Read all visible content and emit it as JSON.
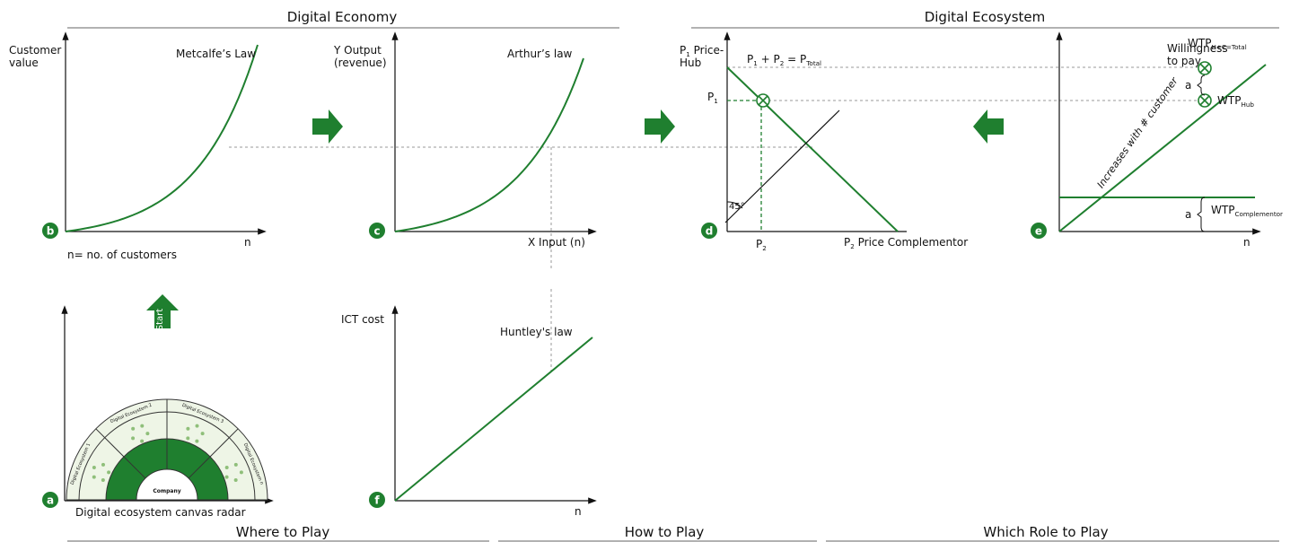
{
  "header": {
    "left": "Digital Economy",
    "right": "Digital Ecosystem"
  },
  "footer": {
    "where": "Where to Play",
    "how": "How to Play",
    "role": "Which Role to Play"
  },
  "panels": {
    "b": {
      "badge": "b",
      "y_label": [
        "Customer",
        "value"
      ],
      "curve_label": "Metcalfe’s Law",
      "x_label": "n",
      "note": "n= no. of customers"
    },
    "c": {
      "badge": "c",
      "y_label": [
        "Y Output",
        "(revenue)"
      ],
      "curve_label": "Arthur’s law",
      "x_label": "X Input (n)"
    },
    "d": {
      "badge": "d",
      "y_label": [
        [
          [
            "P",
            "1"
          ],
          [
            " Price-"
          ]
        ],
        [
          [
            "Hub"
          ]
        ]
      ],
      "equation": [
        [
          "P",
          "1"
        ],
        [
          " + P",
          "2"
        ],
        [
          " = P",
          "Total"
        ]
      ],
      "p1": [
        [
          "P",
          "1"
        ]
      ],
      "p2": [
        [
          "P",
          "2"
        ]
      ],
      "x_label": [
        [
          "P",
          "2"
        ],
        [
          " Price Complementor"
        ]
      ],
      "angle": "45°"
    },
    "e": {
      "badge": "e",
      "y_label": [
        "Willingness",
        "to pay"
      ],
      "wtp_total": [
        [
          "WTP",
          "H+C=Total"
        ]
      ],
      "gap_top": "a",
      "wtp_hub": [
        [
          "WTP",
          "Hub"
        ]
      ],
      "line_label": "Increases with # customer",
      "gap_bottom": "a",
      "wtp_comp": [
        [
          "WTP",
          "Complementor"
        ]
      ],
      "x_label": "n"
    },
    "a": {
      "badge": "a",
      "start": "Start",
      "sectors": [
        "Digital Ecosystem 1",
        "Digital Ecosystem 2",
        "Digital Ecosystem 3",
        "Digital Ecosystem n"
      ],
      "center": "Company",
      "caption": "Digital ecosystem canvas radar"
    },
    "f": {
      "badge": "f",
      "y_label": [
        "ICT cost"
      ],
      "curve_label": "Huntley's law",
      "x_label": "n"
    }
  }
}
